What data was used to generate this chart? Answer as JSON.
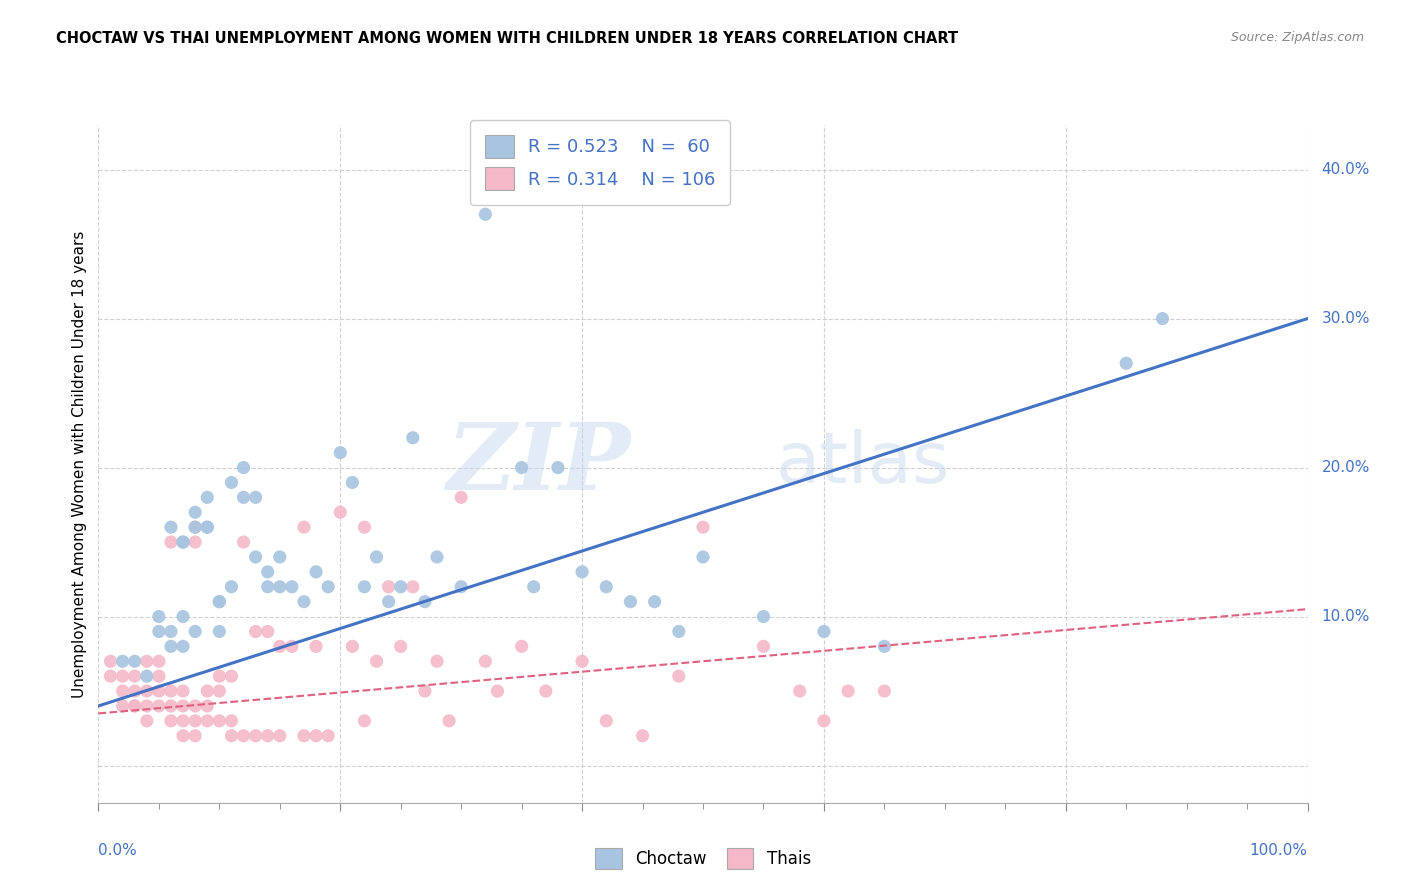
{
  "title": "CHOCTAW VS THAI UNEMPLOYMENT AMONG WOMEN WITH CHILDREN UNDER 18 YEARS CORRELATION CHART",
  "source": "Source: ZipAtlas.com",
  "ylabel": "Unemployment Among Women with Children Under 18 years",
  "xlim": [
    0.0,
    1.0
  ],
  "ylim": [
    -0.025,
    0.43
  ],
  "choctaw_color": "#a8c4e0",
  "choctaw_line_color": "#4472c4",
  "thai_color": "#f4b8c8",
  "thai_line_color": "#e06080",
  "R_choctaw": "0.523",
  "N_choctaw": "60",
  "R_thai": "0.314",
  "N_thai": "106",
  "choctaw_scatter_x": [
    0.02,
    0.03,
    0.04,
    0.05,
    0.05,
    0.06,
    0.06,
    0.06,
    0.07,
    0.07,
    0.07,
    0.07,
    0.08,
    0.08,
    0.08,
    0.09,
    0.09,
    0.09,
    0.1,
    0.1,
    0.1,
    0.11,
    0.11,
    0.12,
    0.12,
    0.13,
    0.13,
    0.14,
    0.14,
    0.15,
    0.15,
    0.16,
    0.17,
    0.18,
    0.19,
    0.2,
    0.21,
    0.22,
    0.23,
    0.24,
    0.25,
    0.26,
    0.27,
    0.28,
    0.3,
    0.32,
    0.35,
    0.36,
    0.38,
    0.4,
    0.42,
    0.44,
    0.46,
    0.48,
    0.5,
    0.55,
    0.6,
    0.65,
    0.85,
    0.88
  ],
  "choctaw_scatter_y": [
    0.07,
    0.07,
    0.06,
    0.1,
    0.09,
    0.09,
    0.08,
    0.16,
    0.1,
    0.08,
    0.15,
    0.15,
    0.16,
    0.17,
    0.09,
    0.18,
    0.16,
    0.16,
    0.09,
    0.11,
    0.11,
    0.12,
    0.19,
    0.2,
    0.18,
    0.14,
    0.18,
    0.12,
    0.13,
    0.14,
    0.12,
    0.12,
    0.11,
    0.13,
    0.12,
    0.21,
    0.19,
    0.12,
    0.14,
    0.11,
    0.12,
    0.22,
    0.11,
    0.14,
    0.12,
    0.37,
    0.2,
    0.12,
    0.2,
    0.13,
    0.12,
    0.11,
    0.11,
    0.09,
    0.14,
    0.1,
    0.09,
    0.08,
    0.27,
    0.3
  ],
  "thai_scatter_x": [
    0.01,
    0.01,
    0.02,
    0.02,
    0.02,
    0.03,
    0.03,
    0.03,
    0.03,
    0.04,
    0.04,
    0.04,
    0.04,
    0.05,
    0.05,
    0.05,
    0.05,
    0.06,
    0.06,
    0.06,
    0.06,
    0.07,
    0.07,
    0.07,
    0.07,
    0.08,
    0.08,
    0.08,
    0.08,
    0.08,
    0.09,
    0.09,
    0.09,
    0.1,
    0.1,
    0.1,
    0.11,
    0.11,
    0.11,
    0.12,
    0.12,
    0.13,
    0.13,
    0.14,
    0.14,
    0.15,
    0.15,
    0.16,
    0.17,
    0.17,
    0.18,
    0.18,
    0.19,
    0.2,
    0.21,
    0.22,
    0.22,
    0.23,
    0.24,
    0.25,
    0.26,
    0.27,
    0.28,
    0.29,
    0.3,
    0.32,
    0.33,
    0.35,
    0.37,
    0.4,
    0.42,
    0.45,
    0.48,
    0.5,
    0.55,
    0.58,
    0.6,
    0.62,
    0.65
  ],
  "thai_scatter_y": [
    0.06,
    0.07,
    0.04,
    0.05,
    0.06,
    0.04,
    0.04,
    0.05,
    0.06,
    0.03,
    0.04,
    0.05,
    0.07,
    0.04,
    0.05,
    0.06,
    0.07,
    0.03,
    0.04,
    0.05,
    0.15,
    0.02,
    0.03,
    0.04,
    0.05,
    0.02,
    0.03,
    0.04,
    0.15,
    0.16,
    0.03,
    0.04,
    0.05,
    0.03,
    0.05,
    0.06,
    0.02,
    0.03,
    0.06,
    0.02,
    0.15,
    0.02,
    0.09,
    0.02,
    0.09,
    0.02,
    0.08,
    0.08,
    0.02,
    0.16,
    0.02,
    0.08,
    0.02,
    0.17,
    0.08,
    0.03,
    0.16,
    0.07,
    0.12,
    0.08,
    0.12,
    0.05,
    0.07,
    0.03,
    0.18,
    0.07,
    0.05,
    0.08,
    0.05,
    0.07,
    0.03,
    0.02,
    0.06,
    0.16,
    0.08,
    0.05,
    0.03,
    0.05,
    0.05
  ],
  "choctaw_trendline_x": [
    0.0,
    1.0
  ],
  "choctaw_trendline_y": [
    0.04,
    0.3
  ],
  "thai_trendline_x": [
    0.0,
    1.0
  ],
  "thai_trendline_y": [
    0.035,
    0.105
  ],
  "watermark_zip": "ZIP",
  "watermark_atlas": "atlas",
  "background_color": "#ffffff",
  "grid_color": "#cccccc",
  "right_yticks": [
    0.0,
    0.1,
    0.2,
    0.3,
    0.4
  ],
  "right_yticklabels": [
    "",
    "10.0%",
    "20.0%",
    "30.0%",
    "40.0%"
  ],
  "x_major_ticks": [
    0.0,
    0.2,
    0.4,
    0.6,
    0.8,
    1.0
  ],
  "x_minor_ticks": [
    0.05,
    0.1,
    0.15,
    0.25,
    0.3,
    0.35,
    0.45,
    0.5,
    0.55,
    0.65,
    0.7,
    0.75,
    0.85,
    0.9,
    0.95
  ],
  "x_tick_edge_labels": [
    "0.0%",
    "100.0%"
  ]
}
